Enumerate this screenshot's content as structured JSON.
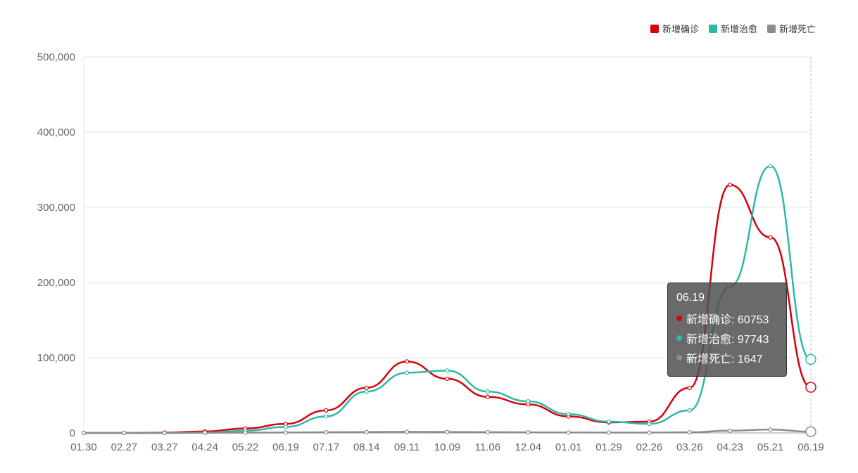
{
  "legend": [
    {
      "label": "新增确诊",
      "color": "#d7000f"
    },
    {
      "label": "新增治愈",
      "color": "#2fb8a6"
    },
    {
      "label": "新增死亡",
      "color": "#8c8c8c"
    }
  ],
  "tooltip": {
    "title": "06.19",
    "rows": [
      {
        "text": "新增确诊: 60753",
        "color": "#d7000f"
      },
      {
        "text": "新增治愈: 97743",
        "color": "#2fb8a6"
      },
      {
        "text": "新增死亡: 1647",
        "color": "#8c8c8c"
      }
    ]
  },
  "chart_data": {
    "type": "line",
    "x_ticks": [
      "01.30",
      "02.27",
      "03.27",
      "04.24",
      "05.22",
      "06.19",
      "07.17",
      "08.14",
      "09.11",
      "10.09",
      "11.06",
      "12.04",
      "01.01",
      "01.29",
      "02.26",
      "03.26",
      "04.23",
      "05.21",
      "06.19"
    ],
    "y_ticks": [
      "0",
      "100,000",
      "200,000",
      "300,000",
      "400,000",
      "500,000"
    ],
    "ylim": [
      0,
      500000
    ],
    "grid": true,
    "legend_position": "top-right",
    "series": [
      {
        "name": "新增确诊",
        "color": "#d7000f",
        "values": [
          0,
          0,
          500,
          2000,
          6000,
          12000,
          30000,
          60000,
          95000,
          72000,
          48000,
          38000,
          22000,
          14000,
          15000,
          60000,
          330000,
          260000,
          60753
        ]
      },
      {
        "name": "新增治愈",
        "color": "#2fb8a6",
        "values": [
          0,
          0,
          0,
          500,
          3000,
          8000,
          22000,
          55000,
          80000,
          83000,
          55000,
          42000,
          25000,
          15000,
          12000,
          30000,
          195000,
          355000,
          97743
        ]
      },
      {
        "name": "新增死亡",
        "color": "#8c8c8c",
        "values": [
          0,
          0,
          50,
          200,
          400,
          600,
          900,
          1200,
          1500,
          1300,
          1000,
          800,
          600,
          500,
          500,
          800,
          3000,
          4500,
          1647
        ]
      }
    ]
  }
}
